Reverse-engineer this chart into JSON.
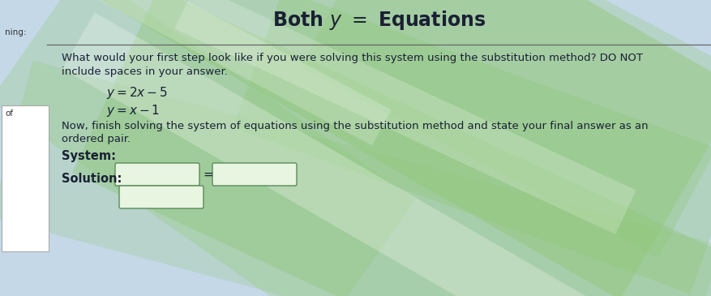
{
  "title": "Both $y$ = Equations",
  "title_fontsize": 17,
  "bg_color": "#c8dce8",
  "bg_green": "#b8d8b0",
  "left_panel_bg": "#f5f5f5",
  "left_panel_border": "#aaaaaa",
  "left_label_top": "ning:",
  "left_label_bottom": "of",
  "header_line_color": "#666666",
  "question_text1": "What would your first step look like if you were solving this system using the substitution method? DO NOT",
  "question_text2": "include spaces in your answer.",
  "equation1": "$y = 2x - 5$",
  "equation2": "$y = x - 1$",
  "now_text1": "Now, finish solving the system of equations using the substitution method and state your final answer as an",
  "now_text2": "ordered pair.",
  "system_label": "System:",
  "solution_label": "Solution:",
  "box_fill": "#e8f5e0",
  "box_border": "#5a8a5a",
  "text_color": "#1a2035",
  "body_fontsize": 9.5,
  "eq_fontsize": 11,
  "label_fontsize": 10.5,
  "title_color": "#1a2035"
}
